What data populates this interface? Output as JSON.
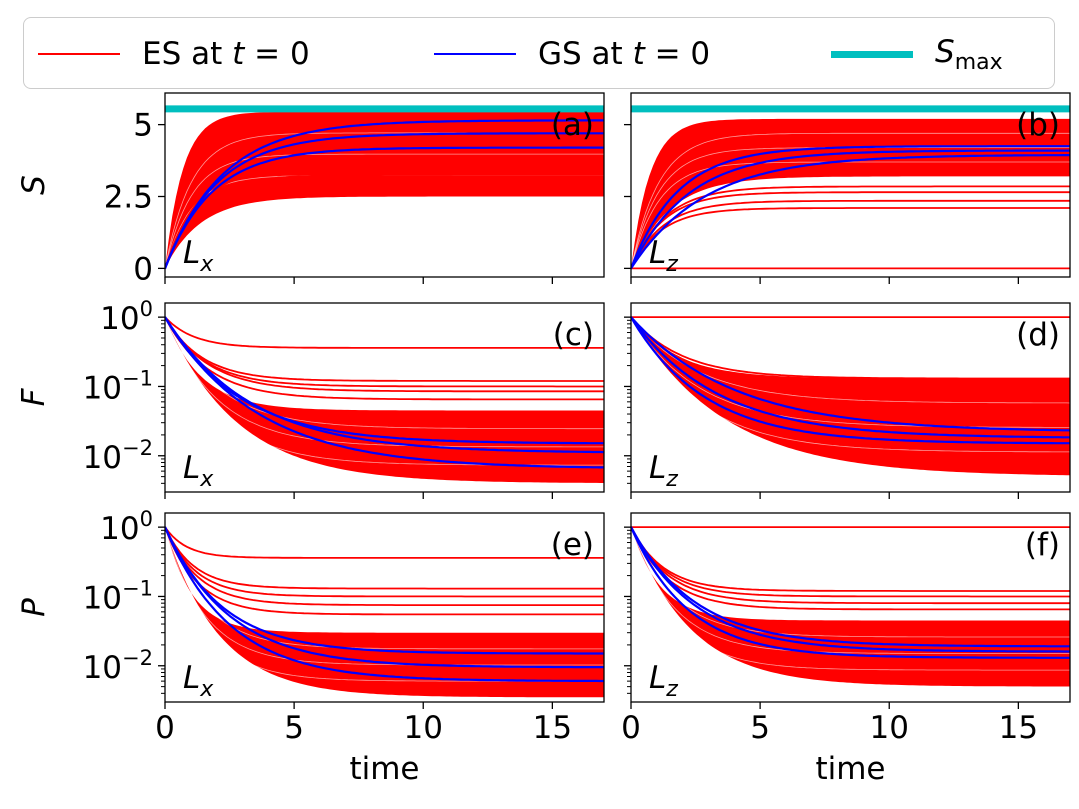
{
  "colors": {
    "es": "#ff0000",
    "gs": "#0000ff",
    "smax": "#00bfbf"
  },
  "legend": [
    {
      "key": "es",
      "text_main": "ES at ",
      "text_var": "t",
      "text_tail": " = 0"
    },
    {
      "key": "gs",
      "text_main": "GS at ",
      "text_var": "t",
      "text_tail": " = 0"
    },
    {
      "key": "smax",
      "text_main": "",
      "text_var": "S",
      "text_sub": "max"
    }
  ],
  "xlabel": "time",
  "chart_data": [
    {
      "type": "line",
      "panel": "(a)",
      "corner_label": "L",
      "corner_sub": "x",
      "ylabel": "S",
      "yscale": "linear",
      "xlim": [
        0,
        17
      ],
      "ylim": [
        -0.3,
        6.1
      ],
      "x_ticks": [
        0,
        5,
        10,
        15
      ],
      "y_ticks": [
        0,
        2.5,
        5
      ],
      "y_tick_labels": [
        "0",
        "2.5",
        "5"
      ],
      "smax": 5.55,
      "band": {
        "low_final": 2.5,
        "high_final": 5.45,
        "rate": 0.9
      },
      "series": [
        {
          "kind": "es",
          "final": 2.55,
          "rate": 0.9
        },
        {
          "kind": "es",
          "final": 3.05,
          "rate": 0.85
        },
        {
          "kind": "es",
          "final": 3.25,
          "rate": 0.8
        },
        {
          "kind": "es",
          "final": 3.55,
          "rate": 0.75
        },
        {
          "kind": "es",
          "final": 3.75,
          "rate": 0.75
        },
        {
          "kind": "gs",
          "final": 4.2,
          "rate": 0.55
        },
        {
          "kind": "gs",
          "final": 4.7,
          "rate": 0.5
        },
        {
          "kind": "gs",
          "final": 5.15,
          "rate": 0.45
        }
      ]
    },
    {
      "type": "line",
      "panel": "(b)",
      "corner_label": "L",
      "corner_sub": "z",
      "ylabel": "",
      "yscale": "linear",
      "xlim": [
        0,
        17
      ],
      "ylim": [
        -0.3,
        6.1
      ],
      "x_ticks": [
        0,
        5,
        10,
        15
      ],
      "y_ticks": [
        0,
        2.5,
        5
      ],
      "y_tick_labels": [
        "",
        "",
        ""
      ],
      "smax": 5.55,
      "band": {
        "low_final": 3.2,
        "high_final": 5.2,
        "rate": 0.85
      },
      "series": [
        {
          "kind": "es",
          "final": 0.0,
          "rate": 1.0
        },
        {
          "kind": "es",
          "final": 2.1,
          "rate": 0.85
        },
        {
          "kind": "es",
          "final": 2.35,
          "rate": 0.8
        },
        {
          "kind": "es",
          "final": 2.65,
          "rate": 0.8
        },
        {
          "kind": "es",
          "final": 2.85,
          "rate": 0.75
        },
        {
          "kind": "gs",
          "final": 3.95,
          "rate": 0.35
        },
        {
          "kind": "gs",
          "final": 4.1,
          "rate": 0.45
        },
        {
          "kind": "gs",
          "final": 4.25,
          "rate": 0.55
        }
      ]
    },
    {
      "type": "line",
      "panel": "(c)",
      "corner_label": "L",
      "corner_sub": "x",
      "ylabel": "F",
      "yscale": "log",
      "xlim": [
        0,
        17
      ],
      "ylim": [
        0.003,
        1.6
      ],
      "x_ticks": [
        0,
        5,
        10,
        15
      ],
      "y_ticks": [
        1,
        0.1,
        0.01
      ],
      "y_tick_labels": [
        [
          "10",
          "0"
        ],
        [
          "10",
          "−1"
        ],
        [
          "10",
          "−2"
        ]
      ],
      "band": {
        "low_final": 0.004,
        "high_final": 0.045,
        "rate": 0.45
      },
      "series": [
        {
          "kind": "es",
          "final": 0.36,
          "rate": 0.9
        },
        {
          "kind": "es",
          "final": 0.12,
          "rate": 0.7
        },
        {
          "kind": "es",
          "final": 0.1,
          "rate": 0.65
        },
        {
          "kind": "es",
          "final": 0.085,
          "rate": 0.6
        },
        {
          "kind": "es",
          "final": 0.065,
          "rate": 0.6
        },
        {
          "kind": "gs",
          "final": 0.015,
          "rate": 0.35
        },
        {
          "kind": "gs",
          "final": 0.011,
          "rate": 0.3
        },
        {
          "kind": "gs",
          "final": 0.0065,
          "rate": 0.28
        }
      ]
    },
    {
      "type": "line",
      "panel": "(d)",
      "corner_label": "L",
      "corner_sub": "z",
      "ylabel": "",
      "yscale": "log",
      "xlim": [
        0,
        17
      ],
      "ylim": [
        0.003,
        1.6
      ],
      "x_ticks": [
        0,
        5,
        10,
        15
      ],
      "y_ticks": [
        1,
        0.1,
        0.01
      ],
      "y_tick_labels": [
        [
          "",
          ""
        ],
        [
          "",
          ""
        ],
        [
          "",
          ""
        ]
      ],
      "band": {
        "low_final": 0.005,
        "high_final": 0.13,
        "rate": 0.35
      },
      "series": [
        {
          "kind": "es",
          "final": 1.0,
          "rate": 1.0
        },
        {
          "kind": "es",
          "final": 0.13,
          "rate": 0.5
        },
        {
          "kind": "es",
          "final": 0.11,
          "rate": 0.5
        },
        {
          "kind": "es",
          "final": 0.09,
          "rate": 0.45
        },
        {
          "kind": "gs",
          "final": 0.022,
          "rate": 0.25
        },
        {
          "kind": "gs",
          "final": 0.018,
          "rate": 0.3
        },
        {
          "kind": "gs",
          "final": 0.015,
          "rate": 0.35
        }
      ]
    },
    {
      "type": "line",
      "panel": "(e)",
      "corner_label": "L",
      "corner_sub": "x",
      "ylabel": "P",
      "yscale": "log",
      "xlim": [
        0,
        17
      ],
      "ylim": [
        0.003,
        1.6
      ],
      "x_ticks": [
        0,
        5,
        10,
        15
      ],
      "y_ticks": [
        1,
        0.1,
        0.01
      ],
      "y_tick_labels": [
        [
          "10",
          "0"
        ],
        [
          "10",
          "−1"
        ],
        [
          "10",
          "−2"
        ]
      ],
      "band": {
        "low_final": 0.0035,
        "high_final": 0.03,
        "rate": 0.6
      },
      "series": [
        {
          "kind": "es",
          "final": 0.36,
          "rate": 1.2
        },
        {
          "kind": "es",
          "final": 0.13,
          "rate": 0.9
        },
        {
          "kind": "es",
          "final": 0.1,
          "rate": 0.85
        },
        {
          "kind": "es",
          "final": 0.075,
          "rate": 0.8
        },
        {
          "kind": "es",
          "final": 0.055,
          "rate": 0.8
        },
        {
          "kind": "gs",
          "final": 0.015,
          "rate": 0.45
        },
        {
          "kind": "gs",
          "final": 0.0095,
          "rate": 0.4
        },
        {
          "kind": "gs",
          "final": 0.006,
          "rate": 0.4
        }
      ]
    },
    {
      "type": "line",
      "panel": "(f)",
      "corner_label": "L",
      "corner_sub": "z",
      "ylabel": "",
      "yscale": "log",
      "xlim": [
        0,
        17
      ],
      "ylim": [
        0.003,
        1.6
      ],
      "x_ticks": [
        0,
        5,
        10,
        15
      ],
      "y_ticks": [
        1,
        0.1,
        0.01
      ],
      "y_tick_labels": [
        [
          "",
          ""
        ],
        [
          "",
          ""
        ],
        [
          "",
          ""
        ]
      ],
      "band": {
        "low_final": 0.005,
        "high_final": 0.045,
        "rate": 0.55
      },
      "series": [
        {
          "kind": "es",
          "final": 1.0,
          "rate": 1.0
        },
        {
          "kind": "es",
          "final": 0.12,
          "rate": 0.8
        },
        {
          "kind": "es",
          "final": 0.1,
          "rate": 0.75
        },
        {
          "kind": "es",
          "final": 0.08,
          "rate": 0.7
        },
        {
          "kind": "es",
          "final": 0.065,
          "rate": 0.7
        },
        {
          "kind": "gs",
          "final": 0.019,
          "rate": 0.4
        },
        {
          "kind": "gs",
          "final": 0.016,
          "rate": 0.4
        },
        {
          "kind": "gs",
          "final": 0.013,
          "rate": 0.45
        }
      ]
    }
  ]
}
